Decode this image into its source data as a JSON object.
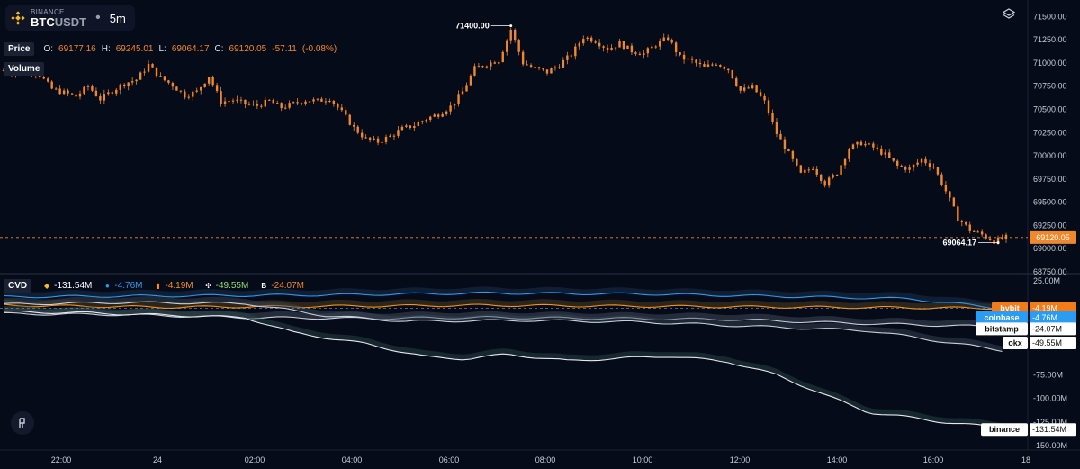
{
  "symbol": {
    "exchange": "BINANCE",
    "base": "BTC",
    "quote": "USDT",
    "timeframe": "5m"
  },
  "price_legend": {
    "label": "Price",
    "o_label": "O:",
    "o": "69177.16",
    "h_label": "H:",
    "h": "69245.01",
    "l_label": "L:",
    "l": "69064.17",
    "c_label": "C:",
    "c": "69120.05",
    "change": "-57.11",
    "change_pct": "(-0.08%)"
  },
  "volume_label": "Volume",
  "cvd_legend": {
    "label": "CVD",
    "items": [
      {
        "exchange": "binance",
        "icon": "binance-icon",
        "value": "-131.54M",
        "color": "#ffffff"
      },
      {
        "exchange": "coinbase",
        "icon": "coinbase-icon",
        "value": "-4.76M",
        "color": "#2b9cf2"
      },
      {
        "exchange": "bybit",
        "icon": "bybit-icon",
        "value": "-4.19M",
        "color": "#f7931a"
      },
      {
        "exchange": "okx",
        "icon": "okx-icon",
        "value": "-49.55M",
        "color": "#8ede76"
      },
      {
        "exchange": "bitstamp",
        "icon": "bitstamp-icon",
        "value": "-24.07M",
        "color": "#f0872b"
      }
    ]
  },
  "colors": {
    "background": "#060b19",
    "candle": "#f0872b",
    "grid": "#1a2030",
    "accent": "#f0872b"
  },
  "chart_data": [
    {
      "type": "candlestick",
      "title": "BTCUSDT 5m",
      "ylim": [
        68750,
        71600
      ],
      "y_ticks": [
        68750,
        69000,
        69250,
        69500,
        69750,
        70000,
        70250,
        70500,
        70750,
        71000,
        71250,
        71500
      ],
      "y_tick_labels": [
        "68750.00",
        "69000.00",
        "69250.00",
        "69500.00",
        "69750.00",
        "70000.00",
        "70250.00",
        "70500.00",
        "70750.00",
        "71000.00",
        "71250.00",
        "71500.00"
      ],
      "x_tick_labels": [
        "22:00",
        "24",
        "02:00",
        "04:00",
        "06:00",
        "08:00",
        "10:00",
        "12:00",
        "14:00",
        "16:00",
        "18"
      ],
      "close_path": [
        [
          0,
          70920
        ],
        [
          3,
          70890
        ],
        [
          6,
          70950
        ],
        [
          9,
          70870
        ],
        [
          12,
          70720
        ],
        [
          15,
          70680
        ],
        [
          18,
          70640
        ],
        [
          21,
          70750
        ],
        [
          24,
          70610
        ],
        [
          27,
          70700
        ],
        [
          30,
          70780
        ],
        [
          33,
          70820
        ],
        [
          36,
          70980
        ],
        [
          39,
          70840
        ],
        [
          42,
          70760
        ],
        [
          45,
          70650
        ],
        [
          48,
          70690
        ],
        [
          51,
          70860
        ],
        [
          54,
          70580
        ],
        [
          57,
          70600
        ],
        [
          60,
          70560
        ],
        [
          63,
          70540
        ],
        [
          66,
          70590
        ],
        [
          69,
          70520
        ],
        [
          72,
          70560
        ],
        [
          75,
          70600
        ],
        [
          78,
          70590
        ],
        [
          81,
          70620
        ],
        [
          84,
          70470
        ],
        [
          87,
          70300
        ],
        [
          90,
          70180
        ],
        [
          93,
          70150
        ],
        [
          96,
          70210
        ],
        [
          99,
          70290
        ],
        [
          102,
          70330
        ],
        [
          105,
          70400
        ],
        [
          108,
          70450
        ],
        [
          111,
          70530
        ],
        [
          114,
          70690
        ],
        [
          117,
          70940
        ],
        [
          120,
          70990
        ],
        [
          123,
          71030
        ],
        [
          126,
          71360
        ],
        [
          129,
          71000
        ],
        [
          132,
          70940
        ],
        [
          135,
          70900
        ],
        [
          138,
          70980
        ],
        [
          141,
          71090
        ],
        [
          144,
          71280
        ],
        [
          147,
          71240
        ],
        [
          150,
          71150
        ],
        [
          153,
          71210
        ],
        [
          156,
          71130
        ],
        [
          159,
          71100
        ],
        [
          162,
          71200
        ],
        [
          165,
          71270
        ],
        [
          168,
          71060
        ],
        [
          171,
          71020
        ],
        [
          174,
          70950
        ],
        [
          177,
          71000
        ],
        [
          180,
          70930
        ],
        [
          183,
          70700
        ],
        [
          186,
          70740
        ],
        [
          189,
          70580
        ],
        [
          192,
          70240
        ],
        [
          195,
          70020
        ],
        [
          198,
          69800
        ],
        [
          201,
          69880
        ],
        [
          204,
          69700
        ],
        [
          207,
          69820
        ],
        [
          210,
          70080
        ],
        [
          213,
          70140
        ],
        [
          216,
          70090
        ],
        [
          219,
          70010
        ],
        [
          222,
          69890
        ],
        [
          225,
          69860
        ],
        [
          228,
          69960
        ],
        [
          231,
          69880
        ],
        [
          234,
          69620
        ],
        [
          237,
          69330
        ],
        [
          240,
          69200
        ],
        [
          243,
          69150
        ],
        [
          246,
          69080
        ],
        [
          249,
          69120
        ]
      ],
      "annotations": {
        "high": {
          "label": "71400.00",
          "value": 71400
        },
        "low": {
          "label": "69064.17",
          "value": 69064.17
        },
        "last": {
          "label": "69120.05",
          "value": 69120.05
        }
      }
    },
    {
      "type": "line",
      "title": "CVD",
      "ylim": [
        -150,
        25
      ],
      "y_ticks": [
        25,
        -75,
        -100,
        -125,
        -150
      ],
      "y_tick_labels": [
        "25.00M",
        "-75.00M",
        "-100.00M",
        "-125.00M",
        "-150.00M"
      ],
      "x_tick_labels": [
        "22:00",
        "24",
        "02:00",
        "04:00",
        "06:00",
        "08:00",
        "10:00",
        "12:00",
        "14:00",
        "16:00",
        "18"
      ],
      "series": [
        {
          "name": "bybit",
          "label": "bybit",
          "value_label": "-4.19M",
          "color": "#f7931a",
          "badge_bg": "#f07c1b",
          "badge_fg": "#ffffff",
          "value": -4.19,
          "points": [
            [
              0,
              -1
            ],
            [
              40,
              -3
            ],
            [
              80,
              -2
            ],
            [
              120,
              -1
            ],
            [
              160,
              -2
            ],
            [
              200,
              -3
            ],
            [
              249,
              -4.19
            ]
          ]
        },
        {
          "name": "coinbase",
          "label": "coinbase",
          "value_label": "-4.76M",
          "color": "#2b9cf2",
          "badge_bg": "#2b9cf2",
          "badge_fg": "#ffffff",
          "value": -4.76,
          "points": [
            [
              0,
              8
            ],
            [
              40,
              9
            ],
            [
              80,
              10
            ],
            [
              120,
              12
            ],
            [
              160,
              11
            ],
            [
              200,
              8
            ],
            [
              225,
              6
            ],
            [
              249,
              -4.76
            ]
          ]
        },
        {
          "name": "bitstamp",
          "label": "bitstamp",
          "value_label": "-24.07M",
          "color": "#c9ced8",
          "badge_bg": "#ffffff",
          "badge_fg": "#111111",
          "value": -24.07,
          "points": [
            [
              0,
              -10
            ],
            [
              30,
              -11
            ],
            [
              60,
              -14
            ],
            [
              90,
              -15
            ],
            [
              120,
              -14
            ],
            [
              150,
              -15
            ],
            [
              180,
              -16
            ],
            [
              210,
              -20
            ],
            [
              249,
              -24.07
            ]
          ]
        },
        {
          "name": "okx",
          "label": "okx",
          "value_label": "-49.55M",
          "color": "#c9ced8",
          "badge_bg": "#ffffff",
          "badge_fg": "#111111",
          "value": -49.55,
          "points": [
            [
              0,
              0
            ],
            [
              30,
              2
            ],
            [
              60,
              1
            ],
            [
              80,
              -12
            ],
            [
              100,
              -18
            ],
            [
              130,
              -17
            ],
            [
              160,
              -19
            ],
            [
              190,
              -24
            ],
            [
              215,
              -28
            ],
            [
              249,
              -49.55
            ]
          ]
        },
        {
          "name": "binance",
          "label": "binance",
          "value_label": "-131.54M",
          "color": "#e6e8ee",
          "badge_bg": "#ffffff",
          "badge_fg": "#111111",
          "value": -131.54,
          "points": [
            [
              0,
              -8
            ],
            [
              20,
              -9
            ],
            [
              45,
              -12
            ],
            [
              60,
              -14
            ],
            [
              72,
              -30
            ],
            [
              90,
              -42
            ],
            [
              105,
              -56
            ],
            [
              115,
              -58
            ],
            [
              125,
              -53
            ],
            [
              140,
              -60
            ],
            [
              165,
              -55
            ],
            [
              180,
              -61
            ],
            [
              192,
              -75
            ],
            [
              205,
              -98
            ],
            [
              215,
              -115
            ],
            [
              225,
              -120
            ],
            [
              235,
              -126
            ],
            [
              249,
              -131.54
            ]
          ]
        }
      ]
    }
  ]
}
